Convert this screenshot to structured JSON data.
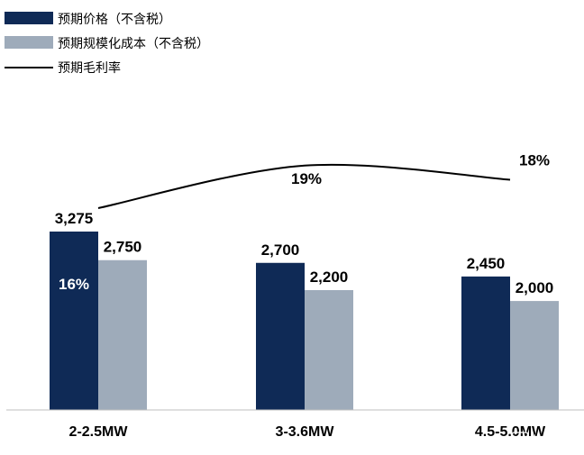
{
  "chart_data": {
    "type": "bar",
    "categories": [
      "2-2.5MW",
      "3-3.6MW",
      "4.5-5.0MW"
    ],
    "series": [
      {
        "name": "预期价格（不含税）",
        "type": "bar",
        "color": "#0f2a56",
        "values": [
          3275,
          2700,
          2450
        ],
        "labels": [
          "3,275",
          "2,700",
          "2,450"
        ]
      },
      {
        "name": "预期规模化成本（不含税）",
        "type": "bar",
        "color": "#9eabba",
        "values": [
          2750,
          2200,
          2000
        ],
        "labels": [
          "2,750",
          "2,200",
          "2,000"
        ]
      },
      {
        "name": "预期毛利率",
        "type": "line",
        "color": "#000000",
        "values": [
          16,
          19,
          18
        ],
        "labels": [
          "16%",
          "19%",
          "18%"
        ],
        "unit": "%"
      }
    ],
    "ylim": [
      0,
      5000
    ],
    "line_ylim": [
      0,
      24
    ],
    "legend": "top-left",
    "grid": false
  },
  "watermark": {
    "text": "格隆汇"
  }
}
